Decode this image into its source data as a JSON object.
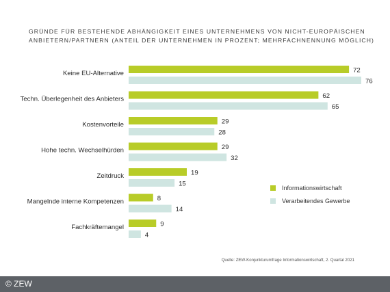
{
  "title": "Gründe für bestehende Abhängigkeit eines Unternehmens von nicht-europäischen Anbietern/Partnern (Anteil der Unternehmen in Prozent; Mehrfachnennung möglich)",
  "source": "Quelle: ZEW-Konjunkturumfrage Informationswirtschaft, 2. Quartal 2021",
  "copyright": "© ZEW",
  "colors": {
    "series_a": "#b8cc28",
    "series_b": "#cfe5e1",
    "label_text": "#2b2b2b"
  },
  "chart_data": {
    "type": "bar",
    "orientation": "horizontal",
    "categories": [
      "Keine EU-Alternative",
      "Techn. Überlegenheit des Anbieters",
      "Kostenvorteile",
      "Hohe techn. Wechselhürden",
      "Zeitdruck",
      "Mangelnde interne Kompetenzen",
      "Fachkräftemangel"
    ],
    "series": [
      {
        "name": "Informationswirtschaft",
        "color": "#b8cc28",
        "values": [
          72,
          62,
          29,
          29,
          19,
          8,
          9
        ]
      },
      {
        "name": "Verarbeitendes Gewerbe",
        "color": "#cfe5e1",
        "values": [
          76,
          65,
          28,
          32,
          15,
          14,
          4
        ]
      }
    ],
    "xlim": [
      0,
      76
    ],
    "grid": false,
    "legend_position": "right"
  }
}
